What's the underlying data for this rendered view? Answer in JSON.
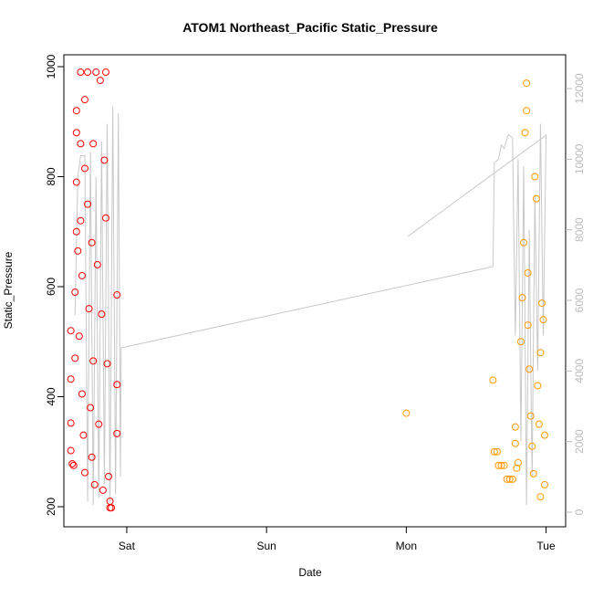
{
  "chart_data": {
    "type": "scatter",
    "title": "ATOM1 Northeast_Pacific Static_Pressure",
    "xlabel": "Date",
    "ylabel": "Static_Pressure",
    "xlim": [
      0.55,
      4.14
    ],
    "xticks": [
      {
        "value": 1,
        "label": "Sat"
      },
      {
        "value": 2,
        "label": "Sun"
      },
      {
        "value": 3,
        "label": "Mon"
      },
      {
        "value": 4,
        "label": "Tue"
      }
    ],
    "ylim": [
      163.5,
      1021.6
    ],
    "yticks": [
      200,
      400,
      600,
      800,
      1000
    ],
    "y2lim": [
      -414,
      12957
    ],
    "y2ticks": [
      0,
      2000,
      4000,
      6000,
      8000,
      10000,
      12000
    ],
    "y2color": "#bbbbbb",
    "series": [
      {
        "type": "scatter",
        "color": "#ff0000",
        "x": [
          0.6,
          0.6,
          0.6,
          0.6,
          0.61,
          0.62,
          0.63,
          0.63,
          0.64,
          0.64,
          0.64,
          0.64,
          0.65,
          0.66,
          0.67,
          0.67,
          0.67,
          0.68,
          0.68,
          0.69,
          0.7,
          0.7,
          0.7,
          0.72,
          0.72,
          0.73,
          0.74,
          0.75,
          0.75,
          0.76,
          0.76,
          0.77,
          0.78,
          0.79,
          0.8,
          0.81,
          0.82,
          0.83,
          0.84,
          0.85,
          0.85,
          0.86,
          0.87,
          0.88,
          0.88,
          0.89,
          0.93,
          0.93,
          0.93
        ],
        "values": [
          520,
          432,
          352,
          302,
          278,
          275,
          470,
          590,
          700,
          790,
          880,
          920,
          665,
          510,
          990,
          860,
          720,
          620,
          405,
          330,
          815,
          940,
          262,
          990,
          750,
          560,
          380,
          290,
          680,
          860,
          465,
          240,
          990,
          640,
          350,
          975,
          550,
          230,
          830,
          725,
          990,
          460,
          255,
          210,
          198,
          198,
          585,
          422,
          333
        ]
      },
      {
        "type": "scatter",
        "color": "#ff9900",
        "x": [
          3.0,
          3.62,
          3.63,
          3.65,
          3.66,
          3.68,
          3.7,
          3.72,
          3.74,
          3.76,
          3.78,
          3.78,
          3.79,
          3.8,
          3.82,
          3.83,
          3.84,
          3.85,
          3.86,
          3.86,
          3.87,
          3.87,
          3.88,
          3.89,
          3.9,
          3.91,
          3.92,
          3.93,
          3.94,
          3.95,
          3.96,
          3.97,
          3.98,
          3.99,
          3.99,
          3.96
        ],
        "values": [
          370,
          430,
          300,
          300,
          275,
          275,
          275,
          250,
          250,
          250,
          345,
          315,
          270,
          280,
          500,
          580,
          680,
          880,
          970,
          920,
          625,
          530,
          450,
          365,
          310,
          260,
          800,
          760,
          420,
          350,
          480,
          570,
          540,
          330,
          240,
          218
        ]
      },
      {
        "type": "line",
        "color": "#c8c8c8",
        "axis": "y2",
        "x": [
          0.63,
          0.65,
          0.67,
          0.7,
          0.72,
          0.74,
          0.76,
          0.78,
          0.8,
          0.82,
          0.84,
          0.86,
          0.88,
          0.9,
          0.92,
          0.94,
          0.955,
          0.96,
          3.62,
          3.63,
          3.66,
          3.68,
          3.7,
          3.73,
          3.76,
          3.78,
          3.8,
          3.82,
          3.84,
          3.86,
          3.88,
          3.9,
          3.92,
          3.94,
          3.96,
          3.98,
          4.0,
          null,
          3.01,
          4.0
        ],
        "values": [
          5586,
          9500,
          10100,
          10100,
          300,
          10200,
          200,
          9500,
          400,
          10500,
          800,
          11000,
          300,
          11500,
          500,
          11300,
          1000,
          4655,
          6957,
          9900,
          10000,
          10400,
          10300,
          10700,
          10600,
          5000,
          10000,
          2000,
          9800,
          200,
          8000,
          1000,
          9000,
          4000,
          11000,
          5000,
          10700,
          null,
          7810,
          10680
        ]
      }
    ]
  }
}
